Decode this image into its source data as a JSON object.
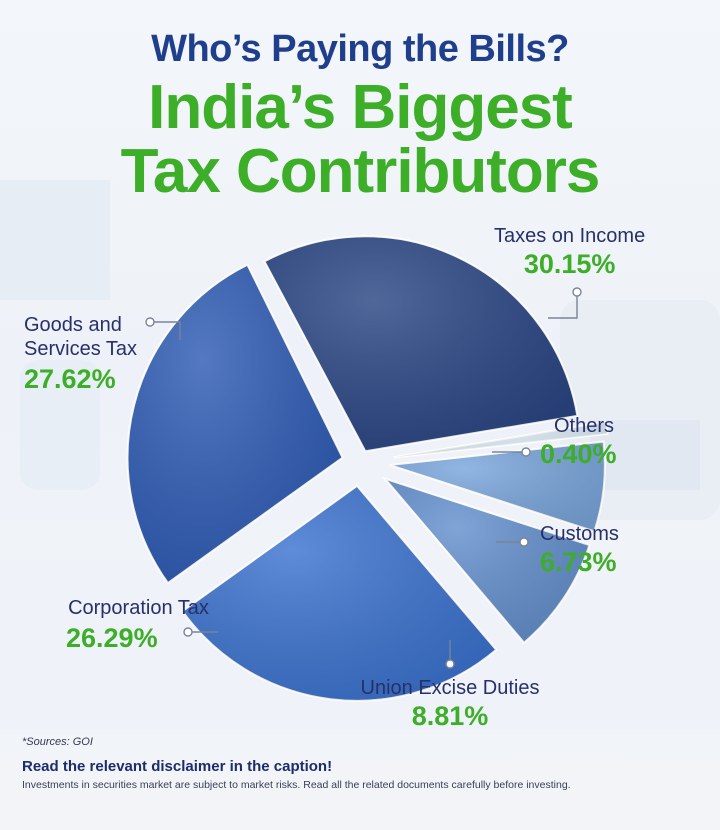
{
  "header": {
    "subtitle": "Who’s Paying the Bills?",
    "title_line1": "India’s Biggest",
    "title_line2": "Tax Contributors"
  },
  "colors": {
    "accent_green": "#3cae27",
    "title_blue": "#1f3f8c"
  },
  "chart_data": {
    "type": "pie",
    "title": "India’s Biggest Tax Contributors",
    "slices": [
      {
        "label": "Taxes on Income",
        "value": 30.15,
        "display": "30.15%",
        "color": "#2a4684"
      },
      {
        "label": "Others",
        "value": 0.4,
        "display": "0.40%",
        "color": "#dcecf8"
      },
      {
        "label": "Customs",
        "value": 6.73,
        "display": "6.73%",
        "color": "#7aa6dc"
      },
      {
        "label": "Union Excise Duties",
        "value": 8.81,
        "display": "8.81%",
        "color": "#6490cd"
      },
      {
        "label": "Corporation Tax",
        "value": 26.29,
        "display": "26.29%",
        "color": "#3c73cf"
      },
      {
        "label": "Goods and Services Tax",
        "value": 27.62,
        "display": "27.62%",
        "color": "#2f5cb5"
      }
    ]
  },
  "footer": {
    "source": "*Sources: GOI",
    "disclaimer": "Read the relevant disclaimer in the caption!",
    "note": "Investments in securities market are subject to market risks. Read all the related documents carefully before investing."
  }
}
